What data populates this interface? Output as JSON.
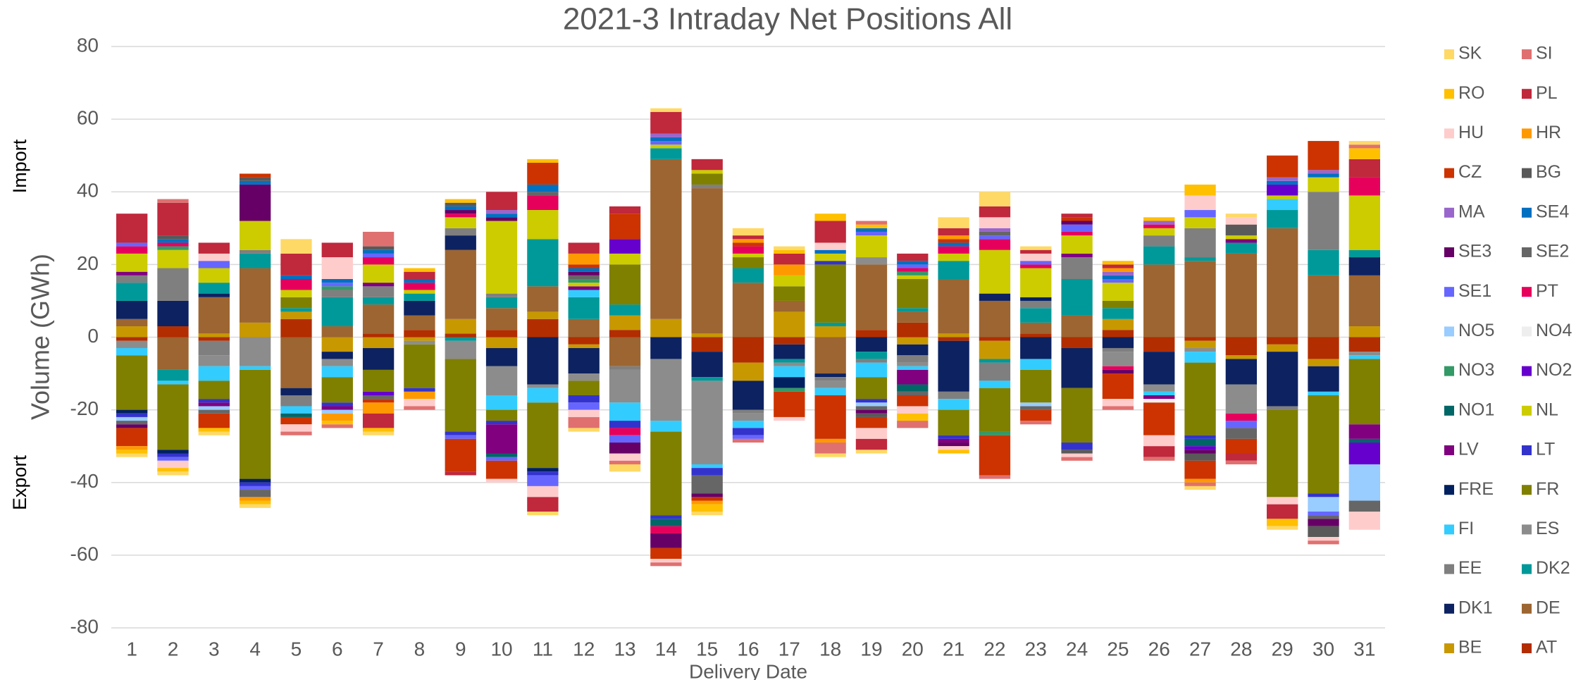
{
  "chart_data": {
    "type": "stacked_bar",
    "title": "2021-3 Intraday Net Positions All",
    "x_label": "Delivery Date",
    "y_label": "Volume (GWh)",
    "annotations": [
      "Import",
      "Export"
    ],
    "categories": [
      "1",
      "2",
      "3",
      "4",
      "5",
      "6",
      "7",
      "8",
      "9",
      "10",
      "11",
      "12",
      "13",
      "14",
      "15",
      "16",
      "17",
      "18",
      "19",
      "20",
      "21",
      "22",
      "23",
      "24",
      "25",
      "26",
      "27",
      "28",
      "29",
      "30",
      "31"
    ],
    "ylim": [
      -80,
      80
    ],
    "yticks": [
      -80,
      -60,
      -40,
      -20,
      0,
      20,
      40,
      60,
      80
    ],
    "grid": true,
    "legend": "right",
    "series": [
      {
        "name": "AT",
        "color": "#b22d00",
        "values": [
          -1,
          3,
          -1,
          0,
          5,
          0,
          1,
          2,
          1,
          2,
          5,
          -2,
          2,
          0,
          -4,
          -7,
          -2,
          0,
          2,
          4,
          -1,
          -1,
          1,
          -3,
          2,
          -4,
          -1,
          -5,
          -2,
          -6,
          -4
        ]
      },
      {
        "name": "BE",
        "color": "#c89800",
        "values": [
          3,
          0,
          1,
          4,
          2,
          -4,
          -3,
          -1,
          4,
          -3,
          2,
          -1,
          4,
          5,
          1,
          -5,
          7,
          3,
          0,
          -2,
          1,
          -5,
          0,
          0,
          3,
          0,
          -2,
          -1,
          -2,
          -2,
          3
        ]
      },
      {
        "name": "DE",
        "color": "#9c6531",
        "values": [
          2,
          -9,
          10,
          15,
          -14,
          3,
          8,
          4,
          19,
          6,
          7,
          5,
          -8,
          44,
          40,
          15,
          3,
          -10,
          18,
          3,
          15,
          10,
          3,
          6,
          0,
          20,
          21,
          23,
          30,
          17,
          14
        ]
      },
      {
        "name": "DK1",
        "color": "#0d2260",
        "values": [
          5,
          7,
          1,
          0,
          -2,
          -2,
          -6,
          4,
          4,
          -5,
          -13,
          -7,
          0,
          -6,
          -7,
          -8,
          -4,
          -1,
          -4,
          -3,
          -14,
          2,
          -6,
          -11,
          -3,
          -9,
          0,
          -7,
          -15,
          -7,
          5
        ]
      },
      {
        "name": "DK2",
        "color": "#009999",
        "values": [
          5,
          -3,
          3,
          4,
          1,
          8,
          2,
          2,
          -1,
          3,
          13,
          6,
          3,
          3,
          -1,
          4,
          -1,
          1,
          -2,
          1,
          5,
          -1,
          4,
          10,
          3,
          5,
          1,
          3,
          5,
          7,
          2
        ]
      },
      {
        "name": "EE",
        "color": "#7f7f7f",
        "values": [
          2,
          9,
          -4,
          1,
          -3,
          2,
          3,
          0,
          2,
          1,
          0,
          0,
          -1,
          0,
          1,
          -1,
          0,
          -1,
          -1,
          -2,
          -2,
          -5,
          2,
          6,
          -1,
          3,
          8,
          0,
          -1,
          16,
          0
        ]
      },
      {
        "name": "ES",
        "color": "#8c8c8c",
        "values": [
          -2,
          0,
          -3,
          -8,
          0,
          -2,
          0,
          -1,
          -5,
          -8,
          -1,
          -2,
          -9,
          -17,
          -23,
          -2,
          -1,
          -2,
          2,
          -1,
          0,
          0,
          0,
          0,
          -4,
          -2,
          -1,
          -8,
          0,
          0,
          -1
        ]
      },
      {
        "name": "FI",
        "color": "#33ccff",
        "values": [
          -2,
          -1,
          -4,
          -1,
          -2,
          -3,
          0,
          0,
          0,
          -4,
          -4,
          2,
          -5,
          -3,
          -1,
          -2,
          -3,
          -2,
          -4,
          -1,
          -3,
          -2,
          -3,
          0,
          0,
          -1,
          -3,
          0,
          3,
          -1,
          -1
        ]
      },
      {
        "name": "FR",
        "color": "#7f7f00",
        "values": [
          -15,
          -18,
          -5,
          -30,
          3,
          -7,
          -6,
          -12,
          -20,
          -3,
          -18,
          -4,
          11,
          -23,
          3,
          3,
          4,
          16,
          -6,
          8,
          -7,
          -12,
          -9,
          -15,
          2,
          0,
          -20,
          0,
          -24,
          -27,
          -18
        ]
      },
      {
        "name": "FRE",
        "color": "#002060",
        "values": [
          -1,
          -1,
          0,
          -1,
          0,
          0,
          0,
          0,
          0,
          0,
          -1,
          0,
          0,
          0,
          0,
          0,
          -3,
          0,
          0,
          0,
          0,
          0,
          1,
          0,
          0,
          0,
          0,
          0,
          0,
          0,
          0
        ]
      },
      {
        "name": "LT",
        "color": "#3333cc",
        "values": [
          -1,
          -1,
          -1,
          -1,
          0,
          -1,
          0,
          -1,
          -1,
          -1,
          -1,
          -2,
          -2,
          -1,
          -2,
          -2,
          0,
          1,
          -1,
          0,
          -1,
          0,
          0,
          -2,
          0,
          0,
          -1,
          0,
          0,
          -1,
          0
        ]
      },
      {
        "name": "LV",
        "color": "#800080",
        "values": [
          1,
          0,
          -1,
          0,
          0,
          -1,
          1,
          0,
          0,
          -8,
          0,
          1,
          0,
          0,
          0,
          0,
          0,
          0,
          0,
          -4,
          -1,
          0,
          0,
          1,
          0,
          -1,
          0,
          1,
          0,
          0,
          -4
        ]
      },
      {
        "name": "NL",
        "color": "#cccc00",
        "values": [
          5,
          5,
          4,
          8,
          2,
          0,
          5,
          1,
          3,
          20,
          8,
          1,
          3,
          1,
          1,
          1,
          3,
          2,
          6,
          1,
          2,
          12,
          8,
          5,
          5,
          2,
          3,
          1,
          1,
          4,
          15
        ]
      },
      {
        "name": "NO1",
        "color": "#006666",
        "values": [
          0,
          0,
          0,
          0,
          -1,
          0,
          0,
          0,
          0,
          -1,
          0,
          0,
          0,
          -2,
          0,
          0,
          0,
          0,
          0,
          -2,
          0,
          0,
          0,
          0,
          0,
          0,
          -2,
          0,
          0,
          0,
          -1
        ]
      },
      {
        "name": "NO2",
        "color": "#6600cc",
        "values": [
          0,
          0,
          0,
          0,
          0,
          0,
          -1,
          0,
          0,
          0,
          0,
          0,
          4,
          0,
          0,
          0,
          0,
          0,
          0,
          0,
          0,
          0,
          0,
          0,
          0,
          0,
          -1,
          0,
          3,
          0,
          -6
        ]
      },
      {
        "name": "NO3",
        "color": "#339966",
        "values": [
          0,
          1,
          0,
          0,
          0,
          1,
          0,
          0,
          0,
          0,
          0,
          1,
          0,
          0,
          0,
          0,
          -1,
          0,
          0,
          1,
          0,
          -1,
          0,
          0,
          0,
          0,
          0,
          0,
          0,
          0,
          0
        ]
      },
      {
        "name": "NO4",
        "color": "#eeeeee",
        "values": [
          0,
          0,
          0,
          0,
          0,
          0,
          0,
          0,
          0,
          0,
          0,
          0,
          0,
          0,
          0,
          0,
          0,
          0,
          0,
          0,
          0,
          0,
          0,
          0,
          0,
          -1,
          0,
          0,
          0,
          0,
          0
        ]
      },
      {
        "name": "NO5",
        "color": "#99ccff",
        "values": [
          -1,
          0,
          -1,
          0,
          0,
          -1,
          0,
          0,
          0,
          0,
          0,
          0,
          0,
          0,
          0,
          0,
          0,
          0,
          -1,
          0,
          0,
          0,
          -1,
          0,
          0,
          0,
          0,
          0,
          0,
          -4,
          -10
        ]
      },
      {
        "name": "PT",
        "color": "#e6005c",
        "values": [
          2,
          1,
          0,
          0,
          3,
          0,
          2,
          2,
          1,
          0,
          4,
          0,
          -2,
          -2,
          0,
          2,
          0,
          0,
          0,
          1,
          2,
          3,
          1,
          1,
          -1,
          1,
          0,
          -2,
          0,
          0,
          5
        ]
      },
      {
        "name": "SE1",
        "color": "#6666ff",
        "values": [
          1,
          -1,
          2,
          -1,
          0,
          1,
          1,
          0,
          -1,
          -1,
          -3,
          -2,
          -2,
          1,
          0,
          -1,
          0,
          0,
          1,
          1,
          0,
          1,
          1,
          2,
          1,
          0,
          2,
          -2,
          0,
          -1,
          0
        ]
      },
      {
        "name": "SE2",
        "color": "#666666",
        "values": [
          -1,
          0,
          -1,
          -2,
          0,
          0,
          -1,
          0,
          0,
          0,
          1,
          1,
          0,
          0,
          -5,
          0,
          0,
          0,
          -1,
          -1,
          0,
          1,
          -1,
          0,
          0,
          0,
          0,
          -3,
          0,
          -1,
          -3
        ]
      },
      {
        "name": "SE3",
        "color": "#660066",
        "values": [
          -1,
          0,
          0,
          10,
          0,
          0,
          0,
          0,
          1,
          1,
          0,
          1,
          -3,
          -4,
          -1,
          0,
          0,
          0,
          -1,
          0,
          -1,
          0,
          0,
          1,
          -1,
          0,
          -1,
          0,
          0,
          -2,
          0
        ]
      },
      {
        "name": "SE4",
        "color": "#0070c0",
        "values": [
          0,
          1,
          0,
          1,
          1,
          1,
          1,
          1,
          1,
          1,
          2,
          1,
          0,
          1,
          0,
          0,
          0,
          1,
          1,
          1,
          1,
          0,
          0,
          0,
          1,
          0,
          0,
          0,
          1,
          1,
          0
        ]
      },
      {
        "name": "MA",
        "color": "#9966cc",
        "values": [
          0,
          0,
          0,
          0,
          0,
          0,
          0,
          0,
          0,
          1,
          0,
          0,
          0,
          1,
          0,
          0,
          0,
          0,
          0,
          0,
          0,
          1,
          0,
          0,
          1,
          1,
          0,
          0,
          1,
          1,
          0
        ]
      },
      {
        "name": "BG",
        "color": "#595959",
        "values": [
          0,
          1,
          0,
          1,
          0,
          0,
          1,
          0,
          1,
          0,
          0,
          0,
          0,
          0,
          0,
          0,
          0,
          0,
          -1,
          0,
          0,
          0,
          0,
          -1,
          0,
          0,
          -2,
          3,
          0,
          -3,
          0
        ]
      },
      {
        "name": "CZ",
        "color": "#cc3300",
        "values": [
          -5,
          0,
          -4,
          1,
          -2,
          0,
          -1,
          0,
          -9,
          -5,
          6,
          1,
          7,
          -3,
          -1,
          1,
          -7,
          -12,
          -3,
          -3,
          1,
          -11,
          -3,
          1,
          -7,
          -9,
          -5,
          -4,
          6,
          8,
          0
        ]
      },
      {
        "name": "HR",
        "color": "#ff9900",
        "values": [
          -1,
          0,
          0,
          -1,
          0,
          -2,
          -3,
          -2,
          0,
          0,
          0,
          3,
          0,
          0,
          -1,
          1,
          3,
          -1,
          0,
          0,
          1,
          0,
          0,
          0,
          1,
          0,
          -1,
          0,
          0,
          0,
          0
        ]
      },
      {
        "name": "HU",
        "color": "#ffcccc",
        "values": [
          0,
          -2,
          2,
          0,
          -2,
          6,
          0,
          -2,
          0,
          -1,
          -3,
          -2,
          -2,
          -1,
          0,
          0,
          -1,
          2,
          -3,
          -2,
          -1,
          3,
          2,
          -1,
          -2,
          -3,
          4,
          2,
          -2,
          -1,
          -5
        ]
      },
      {
        "name": "PL",
        "color": "#c0283c",
        "values": [
          8,
          9,
          3,
          0,
          6,
          4,
          -4,
          2,
          -1,
          5,
          -4,
          3,
          2,
          6,
          3,
          1,
          3,
          6,
          -3,
          2,
          2,
          3,
          1,
          1,
          1,
          -3,
          0,
          -2,
          -4,
          0,
          5
        ]
      },
      {
        "name": "RO",
        "color": "#ffc000",
        "values": [
          -1,
          -1,
          -1,
          -1,
          0,
          -1,
          -1,
          1,
          1,
          0,
          1,
          0,
          0,
          0,
          -2,
          0,
          1,
          2,
          1,
          -2,
          -1,
          0,
          0,
          0,
          1,
          1,
          3,
          0,
          -2,
          0,
          3
        ]
      },
      {
        "name": "SI",
        "color": "#e07070",
        "values": [
          0,
          1,
          0,
          0,
          -1,
          -1,
          4,
          -1,
          0,
          0,
          0,
          -3,
          -1,
          -1,
          0,
          -1,
          0,
          -3,
          1,
          -2,
          0,
          -1,
          -1,
          -1,
          -1,
          -1,
          -1,
          -1,
          0,
          -1,
          1
        ]
      },
      {
        "name": "SK",
        "color": "#ffd966",
        "values": [
          -1,
          -1,
          -1,
          -1,
          4,
          0,
          -1,
          0,
          0,
          0,
          -1,
          -1,
          -2,
          1,
          -1,
          2,
          1,
          -1,
          -1,
          0,
          3,
          4,
          1,
          0,
          0,
          0,
          -1,
          1,
          -1,
          0,
          1
        ]
      }
    ]
  }
}
